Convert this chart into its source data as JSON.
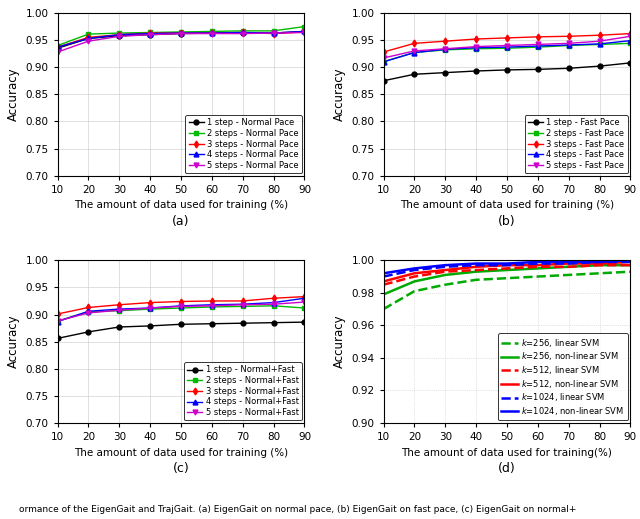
{
  "x": [
    10,
    20,
    30,
    40,
    50,
    60,
    70,
    80,
    90
  ],
  "subplot_a": {
    "xlabel": "The amount of data used for training (%)",
    "ylabel": "Accuracy",
    "ylim": [
      0.7,
      1.0
    ],
    "yticks": [
      0.7,
      0.75,
      0.8,
      0.85,
      0.9,
      0.95,
      1.0
    ],
    "series": [
      {
        "label": "1 step - Normal Pace",
        "color": "#000000",
        "marker": "o",
        "linestyle": "-",
        "data": [
          0.935,
          0.953,
          0.958,
          0.96,
          0.962,
          0.963,
          0.963,
          0.963,
          0.966
        ]
      },
      {
        "label": "2 steps - Normal Pace",
        "color": "#00bb00",
        "marker": "s",
        "linestyle": "-",
        "data": [
          0.94,
          0.961,
          0.963,
          0.964,
          0.965,
          0.966,
          0.967,
          0.967,
          0.975
        ]
      },
      {
        "label": "3 steps - Normal Pace",
        "color": "#ff0000",
        "marker": "d",
        "linestyle": "-",
        "data": [
          0.937,
          0.955,
          0.96,
          0.963,
          0.963,
          0.963,
          0.964,
          0.962,
          0.965
        ]
      },
      {
        "label": "4 steps - Normal Pace",
        "color": "#0000ff",
        "marker": "^",
        "linestyle": "-",
        "data": [
          0.937,
          0.953,
          0.96,
          0.962,
          0.963,
          0.963,
          0.964,
          0.963,
          0.966
        ]
      },
      {
        "label": "5 steps - Normal Pace",
        "color": "#cc00cc",
        "marker": "v",
        "linestyle": "-",
        "data": [
          0.928,
          0.948,
          0.957,
          0.96,
          0.962,
          0.962,
          0.962,
          0.963,
          0.964
        ]
      }
    ]
  },
  "subplot_b": {
    "xlabel": "The amount of data used for training (%)",
    "ylabel": "Accuracy",
    "ylim": [
      0.7,
      1.0
    ],
    "yticks": [
      0.7,
      0.75,
      0.8,
      0.85,
      0.9,
      0.95,
      1.0
    ],
    "series": [
      {
        "label": "1 step - Fast Pace",
        "color": "#000000",
        "marker": "o",
        "linestyle": "-",
        "data": [
          0.875,
          0.887,
          0.89,
          0.893,
          0.895,
          0.896,
          0.898,
          0.902,
          0.908
        ]
      },
      {
        "label": "2 steps - Fast Pace",
        "color": "#00bb00",
        "marker": "s",
        "linestyle": "-",
        "data": [
          0.91,
          0.927,
          0.932,
          0.934,
          0.935,
          0.937,
          0.94,
          0.942,
          0.944
        ]
      },
      {
        "label": "3 steps - Fast Pace",
        "color": "#ff0000",
        "marker": "d",
        "linestyle": "-",
        "data": [
          0.928,
          0.944,
          0.948,
          0.952,
          0.954,
          0.956,
          0.957,
          0.959,
          0.962
        ]
      },
      {
        "label": "4 steps - Fast Pace",
        "color": "#0000ff",
        "marker": "^",
        "linestyle": "-",
        "data": [
          0.91,
          0.927,
          0.933,
          0.936,
          0.937,
          0.939,
          0.941,
          0.943,
          0.949
        ]
      },
      {
        "label": "5 steps - Fast Pace",
        "color": "#cc00cc",
        "marker": "v",
        "linestyle": "-",
        "data": [
          0.917,
          0.93,
          0.934,
          0.938,
          0.94,
          0.942,
          0.944,
          0.948,
          0.957
        ]
      }
    ]
  },
  "subplot_c": {
    "xlabel": "The amount of data used for training (%)",
    "ylabel": "Accuracy",
    "ylim": [
      0.7,
      1.0
    ],
    "yticks": [
      0.7,
      0.75,
      0.8,
      0.85,
      0.9,
      0.95,
      1.0
    ],
    "series": [
      {
        "label": "1 step - Normal+Fast",
        "color": "#000000",
        "marker": "o",
        "linestyle": "-",
        "data": [
          0.856,
          0.868,
          0.877,
          0.879,
          0.882,
          0.883,
          0.884,
          0.885,
          0.886
        ]
      },
      {
        "label": "2 steps - Normal+Fast",
        "color": "#00bb00",
        "marker": "s",
        "linestyle": "-",
        "data": [
          0.888,
          0.905,
          0.907,
          0.91,
          0.912,
          0.914,
          0.915,
          0.916,
          0.912
        ]
      },
      {
        "label": "3 steps - Normal+Fast",
        "color": "#ff0000",
        "marker": "d",
        "linestyle": "-",
        "data": [
          0.901,
          0.913,
          0.918,
          0.922,
          0.924,
          0.925,
          0.925,
          0.93,
          0.933
        ]
      },
      {
        "label": "4 steps - Normal+Fast",
        "color": "#0000ff",
        "marker": "^",
        "linestyle": "-",
        "data": [
          0.887,
          0.906,
          0.91,
          0.912,
          0.916,
          0.918,
          0.919,
          0.922,
          0.93
        ]
      },
      {
        "label": "5 steps - Normal+Fast",
        "color": "#cc00cc",
        "marker": "v",
        "linestyle": "-",
        "data": [
          0.888,
          0.903,
          0.908,
          0.912,
          0.915,
          0.916,
          0.918,
          0.919,
          0.923
        ]
      }
    ]
  },
  "subplot_d": {
    "xlabel": "The amount of data used for training(%)",
    "ylabel": "Accuracy",
    "ylim": [
      0.9,
      1.0
    ],
    "yticks": [
      0.9,
      0.92,
      0.94,
      0.96,
      0.98,
      1.0
    ],
    "series": [
      {
        "label": "$k$=256, linear SVM",
        "color": "#00aa00",
        "linestyle": "--",
        "linewidth": 1.8,
        "data": [
          0.97,
          0.981,
          0.985,
          0.988,
          0.989,
          0.99,
          0.991,
          0.992,
          0.993
        ]
      },
      {
        "label": "$k$=256, non-linear SVM",
        "color": "#00aa00",
        "linestyle": "-",
        "linewidth": 1.8,
        "data": [
          0.979,
          0.987,
          0.991,
          0.993,
          0.994,
          0.995,
          0.996,
          0.997,
          0.997
        ]
      },
      {
        "label": "$k$=512, linear SVM",
        "color": "#ff0000",
        "linestyle": "--",
        "linewidth": 1.8,
        "data": [
          0.985,
          0.99,
          0.993,
          0.994,
          0.995,
          0.996,
          0.996,
          0.997,
          0.997
        ]
      },
      {
        "label": "$k$=512, non-linear SVM",
        "color": "#ff0000",
        "linestyle": "-",
        "linewidth": 1.8,
        "data": [
          0.987,
          0.992,
          0.994,
          0.996,
          0.997,
          0.997,
          0.998,
          0.998,
          0.999
        ]
      },
      {
        "label": "$k$=1024, linear SVM",
        "color": "#0000ff",
        "linestyle": "--",
        "linewidth": 1.8,
        "data": [
          0.99,
          0.994,
          0.996,
          0.997,
          0.997,
          0.998,
          0.998,
          0.999,
          0.999
        ]
      },
      {
        "label": "$k$=1024, non-linear SVM",
        "color": "#0000ff",
        "linestyle": "-",
        "linewidth": 1.8,
        "data": [
          0.992,
          0.995,
          0.997,
          0.998,
          0.998,
          0.999,
          0.999,
          0.999,
          1.0
        ]
      }
    ]
  },
  "caption": "ormance of the EigenGait and TrajGait. (a) EigenGait on normal pace, (b) EigenGait on fast pace, (c) EigenGait on normal+"
}
